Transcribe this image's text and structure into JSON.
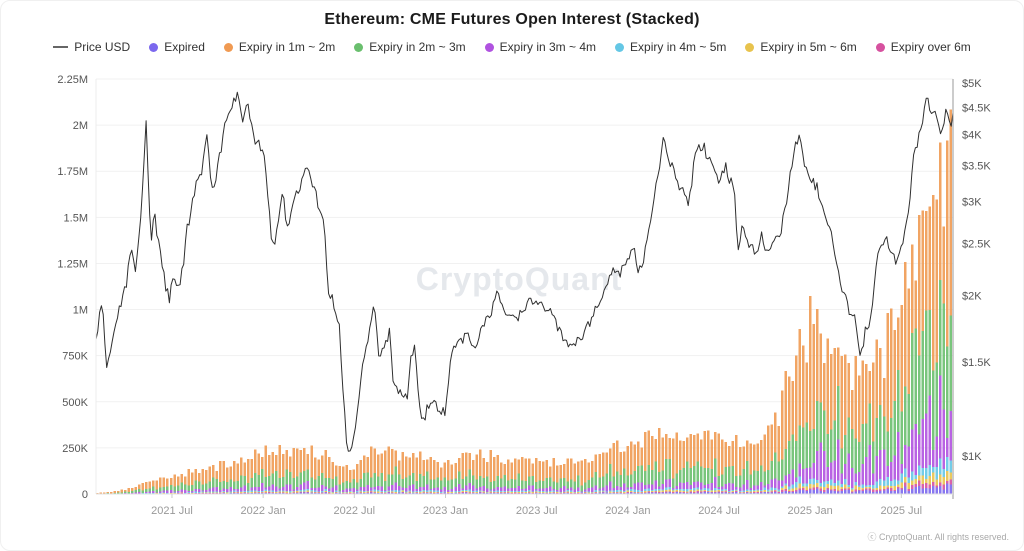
{
  "header": {
    "title": "Ethereum: CME Futures Open Interest (Stacked)"
  },
  "legend": {
    "price_item": {
      "label": "Price USD",
      "swatch": "dash-icon",
      "color": "#666666"
    },
    "items": [
      {
        "label": "Expired",
        "color": "#7b68ee"
      },
      {
        "label": "Expiry in 1m ~ 2m",
        "color": "#f09a52"
      },
      {
        "label": "Expiry in 2m ~ 3m",
        "color": "#6abf6e"
      },
      {
        "label": "Expiry in 3m ~ 4m",
        "color": "#b052e0"
      },
      {
        "label": "Expiry in 4m ~ 5m",
        "color": "#64c7e5"
      },
      {
        "label": "Expiry in 5m ~ 6m",
        "color": "#e8c34d"
      },
      {
        "label": "Expiry over 6m",
        "color": "#d6519f"
      }
    ]
  },
  "watermark": "CryptoQuant",
  "footer": {
    "copyright": "ⓒ CryptoQuant. All rights reserved."
  },
  "chart_data": {
    "type": "stacked_bar_line",
    "title": "Ethereum: CME Futures Open Interest (Stacked)",
    "grid": "horizontal-only",
    "legend_position": "top",
    "x_axis": {
      "start_month": "2021-02",
      "end_month": "2025-10",
      "total_months": 56.4,
      "tick_labels": [
        {
          "month_index": 5,
          "label": "2021 Jul"
        },
        {
          "month_index": 11,
          "label": "2022 Jan"
        },
        {
          "month_index": 17,
          "label": "2022 Jul"
        },
        {
          "month_index": 23,
          "label": "2023 Jan"
        },
        {
          "month_index": 29,
          "label": "2023 Jul"
        },
        {
          "month_index": 35,
          "label": "2024 Jan"
        },
        {
          "month_index": 41,
          "label": "2024 Jul"
        },
        {
          "month_index": 47,
          "label": "2025 Jan"
        },
        {
          "month_index": 53,
          "label": "2025 Jul"
        }
      ]
    },
    "left_axis": {
      "scale": "linear",
      "range_k": [
        0,
        2250
      ],
      "ticks": [
        {
          "value_k": 0,
          "label": "0"
        },
        {
          "value_k": 250,
          "label": "250K"
        },
        {
          "value_k": 500,
          "label": "500K"
        },
        {
          "value_k": 750,
          "label": "750K"
        },
        {
          "value_k": 1000,
          "label": "1M"
        },
        {
          "value_k": 1250,
          "label": "1.25M"
        },
        {
          "value_k": 1500,
          "label": "1.5M"
        },
        {
          "value_k": 1750,
          "label": "1.75M"
        },
        {
          "value_k": 2000,
          "label": "2M"
        },
        {
          "value_k": 2250,
          "label": "2.25M"
        }
      ]
    },
    "right_axis": {
      "scale": "log",
      "ticks": [
        {
          "value_usd": 1000,
          "label": "$1K"
        },
        {
          "value_usd": 1500,
          "label": "$1.5K"
        },
        {
          "value_usd": 2000,
          "label": "$2K"
        },
        {
          "value_usd": 2500,
          "label": "$2.5K"
        },
        {
          "value_usd": 3000,
          "label": "$3K"
        },
        {
          "value_usd": 3500,
          "label": "$3.5K"
        },
        {
          "value_usd": 4000,
          "label": "$4K"
        },
        {
          "value_usd": 4500,
          "label": "$4.5K"
        },
        {
          "value_usd": 5000,
          "label": "$5K"
        }
      ]
    },
    "price_usd": {
      "name": "Price USD",
      "color": "#2f2f2f",
      "anchors_month_price": [
        [
          0,
          1650
        ],
        [
          0.4,
          1950
        ],
        [
          0.7,
          1480
        ],
        [
          1,
          1600
        ],
        [
          1.5,
          1850
        ],
        [
          2,
          2100
        ],
        [
          2.3,
          2520
        ],
        [
          2.6,
          2250
        ],
        [
          3,
          2950
        ],
        [
          3.3,
          4250
        ],
        [
          3.6,
          2450
        ],
        [
          3.8,
          2900
        ],
        [
          4,
          2650
        ],
        [
          4.5,
          2150
        ],
        [
          4.8,
          1950
        ],
        [
          5,
          2150
        ],
        [
          5.5,
          2050
        ],
        [
          5.8,
          2350
        ],
        [
          6,
          2650
        ],
        [
          6.5,
          3150
        ],
        [
          7,
          3450
        ],
        [
          7.3,
          3950
        ],
        [
          7.7,
          3050
        ],
        [
          8,
          3450
        ],
        [
          8.5,
          4150
        ],
        [
          9,
          4550
        ],
        [
          9.3,
          4850
        ],
        [
          9.6,
          4250
        ],
        [
          10,
          4600
        ],
        [
          10.3,
          4050
        ],
        [
          10.6,
          3850
        ],
        [
          11,
          3720
        ],
        [
          11.3,
          3150
        ],
        [
          11.6,
          2450
        ],
        [
          12,
          2700
        ],
        [
          12.3,
          3150
        ],
        [
          12.6,
          2650
        ],
        [
          13,
          2950
        ],
        [
          13.6,
          3350
        ],
        [
          14,
          3450
        ],
        [
          14.5,
          3050
        ],
        [
          14.8,
          2850
        ],
        [
          15,
          2750
        ],
        [
          15.3,
          2050
        ],
        [
          15.6,
          1950
        ],
        [
          16,
          1790
        ],
        [
          16.4,
          1150
        ],
        [
          16.6,
          1000
        ],
        [
          17,
          1100
        ],
        [
          17.5,
          1450
        ],
        [
          17.8,
          1650
        ],
        [
          18,
          1700
        ],
        [
          18.3,
          1950
        ],
        [
          18.6,
          1550
        ],
        [
          19,
          1620
        ],
        [
          19.3,
          1710
        ],
        [
          19.6,
          1350
        ],
        [
          20,
          1320
        ],
        [
          20.5,
          1300
        ],
        [
          20.8,
          1580
        ],
        [
          21,
          1600
        ],
        [
          21.3,
          1250
        ],
        [
          21.5,
          1150
        ],
        [
          22,
          1280
        ],
        [
          22.5,
          1220
        ],
        [
          23,
          1200
        ],
        [
          23.4,
          1550
        ],
        [
          23.7,
          1620
        ],
        [
          24,
          1650
        ],
        [
          24.5,
          1700
        ],
        [
          25,
          1560
        ],
        [
          25.4,
          1750
        ],
        [
          25.7,
          1800
        ],
        [
          26,
          1850
        ],
        [
          26.4,
          2100
        ],
        [
          26.7,
          1900
        ],
        [
          27,
          1870
        ],
        [
          27.5,
          1800
        ],
        [
          28,
          1860
        ],
        [
          28.4,
          1930
        ],
        [
          29,
          1950
        ],
        [
          29.5,
          1900
        ],
        [
          30,
          1850
        ],
        [
          30.5,
          1700
        ],
        [
          31,
          1630
        ],
        [
          31.5,
          1620
        ],
        [
          32,
          1680
        ],
        [
          32.5,
          1790
        ],
        [
          33,
          1900
        ],
        [
          33.5,
          2050
        ],
        [
          34,
          2250
        ],
        [
          34.5,
          2200
        ],
        [
          35,
          2350
        ],
        [
          35.4,
          2500
        ],
        [
          35.6,
          2250
        ],
        [
          36,
          2300
        ],
        [
          36.5,
          2800
        ],
        [
          37,
          3400
        ],
        [
          37.4,
          4000
        ],
        [
          37.7,
          3600
        ],
        [
          38,
          3500
        ],
        [
          38.5,
          3150
        ],
        [
          39,
          3000
        ],
        [
          39.5,
          3750
        ],
        [
          40,
          3800
        ],
        [
          40.5,
          3500
        ],
        [
          41,
          3300
        ],
        [
          41.4,
          3500
        ],
        [
          41.8,
          3250
        ],
        [
          42,
          3200
        ],
        [
          42.2,
          2450
        ],
        [
          42.6,
          2700
        ],
        [
          43,
          2500
        ],
        [
          43.5,
          2350
        ],
        [
          43.8,
          2650
        ],
        [
          44,
          2400
        ],
        [
          44.5,
          2500
        ],
        [
          45,
          2550
        ],
        [
          45.5,
          3100
        ],
        [
          45.8,
          3550
        ],
        [
          46,
          3850
        ],
        [
          46.3,
          3950
        ],
        [
          46.7,
          3400
        ],
        [
          47,
          3350
        ],
        [
          47.3,
          3250
        ],
        [
          47.6,
          3100
        ],
        [
          48,
          2750
        ],
        [
          48.5,
          2550
        ],
        [
          48.8,
          2250
        ],
        [
          49,
          2100
        ],
        [
          49.5,
          1900
        ],
        [
          50,
          1800
        ],
        [
          50.3,
          1500
        ],
        [
          50.7,
          1750
        ],
        [
          51,
          1800
        ],
        [
          51.5,
          2450
        ],
        [
          52,
          2550
        ],
        [
          52.4,
          2400
        ],
        [
          52.8,
          2300
        ],
        [
          53,
          2450
        ],
        [
          53.5,
          2950
        ],
        [
          53.8,
          3650
        ],
        [
          54,
          3750
        ],
        [
          54.4,
          4300
        ],
        [
          54.7,
          4750
        ],
        [
          55,
          4400
        ],
        [
          55.3,
          4300
        ],
        [
          55.6,
          4000
        ],
        [
          56,
          4500
        ],
        [
          56.2,
          4150
        ],
        [
          56.4,
          4350
        ]
      ]
    },
    "open_interest": {
      "unit": "thousand ETH",
      "bars_per_month": 4.33,
      "monthly_totals_k": [
        6,
        14,
        28,
        55,
        80,
        95,
        118,
        138,
        158,
        178,
        205,
        258,
        242,
        228,
        246,
        222,
        168,
        152,
        232,
        248,
        228,
        235,
        185,
        178,
        205,
        225,
        212,
        188,
        205,
        195,
        185,
        176,
        186,
        225,
        262,
        285,
        312,
        352,
        322,
        332,
        342,
        330,
        305,
        288,
        312,
        520,
        840,
        980,
        1010,
        868,
        715,
        818,
        898,
        1150,
        1600,
        1850,
        1975
      ],
      "series_order_bottom_to_top": [
        "expired",
        "over6m",
        "expiry_5m_6m",
        "expiry_4m_5m",
        "expiry_3m_4m",
        "expiry_2m_3m",
        "expiry_1m_2m"
      ],
      "series_colors": {
        "expired": "#7b68ee",
        "expiry_1m_2m": "#f09a52",
        "expiry_2m_3m": "#6abf6e",
        "expiry_3m_4m": "#b052e0",
        "expiry_4m_5m": "#64c7e5",
        "expiry_5m_6m": "#e8c34d",
        "over6m": "#d6519f"
      },
      "composition_fractions": {
        "expired": 0.025,
        "expiry_1m_2m": 0.5,
        "expiry_2m_3m": 0.3,
        "expiry_3m_4m": 0.1,
        "expiry_4m_5m": 0.03,
        "expiry_5m_6m": 0.02,
        "over6m": 0.012
      }
    },
    "watermark": "CryptoQuant"
  }
}
